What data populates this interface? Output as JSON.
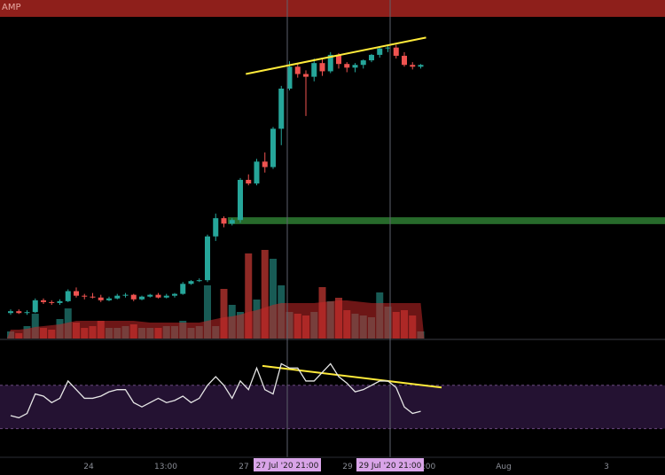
{
  "header": {
    "label": "AMP",
    "color": "#8e1f1b"
  },
  "colors": {
    "up": "#26a69a",
    "down": "#ef5350",
    "vol_up": "#1c6b64",
    "vol_down": "#a8302c",
    "trendline": "#ffeb3b",
    "zone": "#2e7d32",
    "rsi": "#e6e6e6",
    "rsi_band": "#241232"
  },
  "chart_data": [
    {
      "type": "candlestick",
      "x_ticks": [
        "24",
        "13:00",
        "27",
        "27 Jul '20   21:00",
        "29",
        "29 Jul '20   21:00",
        ":00",
        "Aug",
        "3"
      ],
      "crosshair_labels": [
        "27 Jul '20   21:00",
        "29 Jul '20   21:00"
      ],
      "ohlc": [
        [
          0.26,
          0.3,
          0.24,
          0.28
        ],
        [
          0.28,
          0.3,
          0.25,
          0.26
        ],
        [
          0.26,
          0.29,
          0.24,
          0.27
        ],
        [
          0.27,
          0.42,
          0.26,
          0.4
        ],
        [
          0.4,
          0.42,
          0.36,
          0.38
        ],
        [
          0.38,
          0.4,
          0.35,
          0.37
        ],
        [
          0.37,
          0.41,
          0.35,
          0.39
        ],
        [
          0.39,
          0.52,
          0.38,
          0.5
        ],
        [
          0.5,
          0.54,
          0.43,
          0.45
        ],
        [
          0.45,
          0.47,
          0.41,
          0.44
        ],
        [
          0.44,
          0.48,
          0.42,
          0.43
        ],
        [
          0.43,
          0.46,
          0.38,
          0.4
        ],
        [
          0.4,
          0.44,
          0.39,
          0.42
        ],
        [
          0.42,
          0.47,
          0.41,
          0.45
        ],
        [
          0.45,
          0.48,
          0.43,
          0.46
        ],
        [
          0.46,
          0.47,
          0.39,
          0.41
        ],
        [
          0.41,
          0.45,
          0.4,
          0.44
        ],
        [
          0.44,
          0.47,
          0.43,
          0.46
        ],
        [
          0.46,
          0.48,
          0.42,
          0.43
        ],
        [
          0.43,
          0.47,
          0.42,
          0.45
        ],
        [
          0.45,
          0.48,
          0.43,
          0.47
        ],
        [
          0.47,
          0.6,
          0.46,
          0.58
        ],
        [
          0.58,
          0.62,
          0.57,
          0.61
        ],
        [
          0.61,
          0.64,
          0.6,
          0.62
        ],
        [
          0.62,
          1.12,
          0.6,
          1.1
        ],
        [
          1.1,
          1.35,
          1.05,
          1.3
        ],
        [
          1.3,
          1.32,
          1.2,
          1.24
        ],
        [
          1.24,
          1.3,
          1.22,
          1.28
        ],
        [
          1.28,
          1.74,
          1.25,
          1.72
        ],
        [
          1.72,
          1.78,
          1.66,
          1.68
        ],
        [
          1.68,
          1.95,
          1.66,
          1.92
        ],
        [
          1.92,
          2.02,
          1.8,
          1.86
        ],
        [
          1.86,
          2.3,
          1.84,
          2.28
        ],
        [
          2.28,
          2.75,
          2.1,
          2.72
        ],
        [
          2.72,
          3.02,
          2.7,
          2.96
        ],
        [
          2.96,
          3.0,
          2.84,
          2.88
        ],
        [
          2.88,
          2.92,
          2.42,
          2.85
        ],
        [
          2.85,
          3.05,
          2.8,
          3.0
        ],
        [
          3.0,
          3.04,
          2.86,
          2.91
        ],
        [
          2.91,
          3.12,
          2.89,
          3.09
        ],
        [
          3.09,
          3.11,
          2.94,
          2.99
        ],
        [
          2.99,
          3.01,
          2.9,
          2.95
        ],
        [
          2.95,
          3.0,
          2.9,
          2.98
        ],
        [
          2.98,
          3.04,
          2.94,
          3.03
        ],
        [
          3.03,
          3.1,
          3.01,
          3.09
        ],
        [
          3.09,
          3.18,
          3.06,
          3.16
        ],
        [
          3.16,
          3.19,
          3.12,
          3.17
        ],
        [
          3.17,
          3.2,
          3.05,
          3.08
        ],
        [
          3.08,
          3.12,
          2.96,
          2.98
        ],
        [
          2.98,
          3.01,
          2.93,
          2.96
        ],
        [
          2.96,
          2.99,
          2.94,
          2.98
        ]
      ],
      "volume": [
        8,
        6,
        14,
        28,
        12,
        10,
        22,
        34,
        18,
        12,
        14,
        20,
        12,
        12,
        14,
        16,
        12,
        12,
        12,
        14,
        14,
        20,
        12,
        14,
        60,
        14,
        56,
        38,
        30,
        96,
        44,
        100,
        90,
        60,
        30,
        28,
        26,
        30,
        58,
        42,
        46,
        32,
        28,
        26,
        24,
        52,
        36,
        30,
        32,
        26,
        8
      ],
      "volume_ma": [
        10,
        10,
        11,
        13,
        14,
        15,
        16,
        18,
        20,
        20,
        20,
        20,
        20,
        20,
        20,
        20,
        19,
        18,
        18,
        18,
        18,
        18,
        18,
        18,
        20,
        22,
        24,
        25,
        27,
        30,
        32,
        35,
        38,
        40,
        40,
        40,
        40,
        40,
        41,
        42,
        43,
        43,
        42,
        41,
        40,
        40,
        40,
        40,
        40,
        40,
        40
      ],
      "resistance_zone": [
        1.235,
        1.31
      ],
      "rsi": [
        46,
        45,
        47,
        56,
        55,
        52,
        54,
        62,
        58,
        54,
        54,
        55,
        57,
        58,
        58,
        52,
        50,
        52,
        54,
        52,
        53,
        55,
        52,
        54,
        60,
        64,
        60,
        54,
        62,
        58,
        68,
        58,
        56,
        70,
        68,
        68,
        62,
        62,
        66,
        70,
        64,
        61,
        57,
        58,
        60,
        62,
        62,
        59,
        50,
        47,
        48
      ]
    }
  ]
}
